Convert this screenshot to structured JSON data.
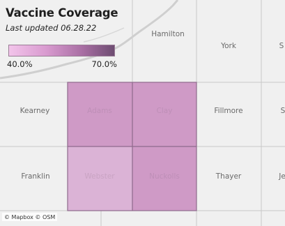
{
  "legend": {
    "title": "Vaccine Coverage",
    "subtitle": "Last updated 06.28.22",
    "min_label": "40.0%",
    "max_label": "70.0%",
    "color_low": "#f2c4ea",
    "color_high": "#6e4d72"
  },
  "counties": [
    {
      "key": "hamilton",
      "name": "Hamilton",
      "highlighted": false
    },
    {
      "key": "york",
      "name": "York",
      "highlighted": false
    },
    {
      "key": "seward_partial",
      "name": "S",
      "highlighted": false
    },
    {
      "key": "kearney",
      "name": "Kearney",
      "highlighted": false
    },
    {
      "key": "adams",
      "name": "Adams",
      "highlighted": true,
      "fill": "#cf9ac6"
    },
    {
      "key": "clay",
      "name": "Clay",
      "highlighted": true,
      "fill": "#cf9ac6"
    },
    {
      "key": "fillmore",
      "name": "Fillmore",
      "highlighted": false
    },
    {
      "key": "saline_partial",
      "name": "S",
      "highlighted": false
    },
    {
      "key": "franklin",
      "name": "Franklin",
      "highlighted": false
    },
    {
      "key": "webster",
      "name": "Webster",
      "highlighted": true,
      "fill": "#dbb3d6"
    },
    {
      "key": "nuckolls",
      "name": "Nuckolls",
      "highlighted": true,
      "fill": "#cf9ac6"
    },
    {
      "key": "thayer",
      "name": "Thayer",
      "highlighted": false
    },
    {
      "key": "jefferson_partial",
      "name": "Je",
      "highlighted": false
    }
  ],
  "attribution": "© Mapbox © OSM"
}
